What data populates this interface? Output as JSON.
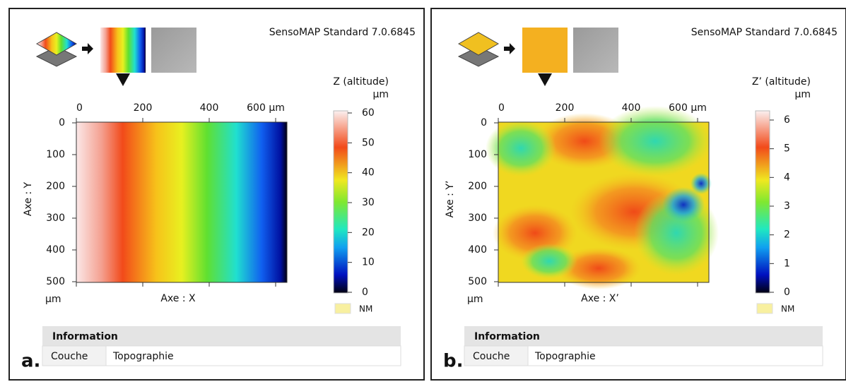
{
  "panels": [
    {
      "label": "a.",
      "software": "SensoMAP Standard 7.0.6845",
      "colorbar": {
        "title": "Z (altitude)",
        "unit": "µm",
        "ticks": [
          "0",
          "10",
          "20",
          "30",
          "40",
          "50",
          "60"
        ],
        "nm": "NM"
      },
      "x_axis": {
        "ticks": [
          "0",
          "200",
          "400",
          "600 µm"
        ],
        "label": "Axe : X"
      },
      "y_axis": {
        "ticks": [
          "0",
          "100",
          "200",
          "300",
          "400",
          "500"
        ],
        "unit": "µm",
        "label": "Axe : Y"
      },
      "info": {
        "title": "Information",
        "key": "Couche",
        "value": "Topographie"
      }
    },
    {
      "label": "b.",
      "software": "SensoMAP Standard 7.0.6845",
      "colorbar": {
        "title": "Z’ (altitude)",
        "unit": "µm",
        "ticks": [
          "0",
          "1",
          "2",
          "3",
          "4",
          "5",
          "6"
        ],
        "nm": "NM"
      },
      "x_axis": {
        "ticks": [
          "0",
          "200",
          "400",
          "600 µm"
        ],
        "label": "Axe : X’"
      },
      "y_axis": {
        "ticks": [
          "0",
          "100",
          "200",
          "300",
          "400",
          "500"
        ],
        "unit": "µm",
        "label": "Axe : Y’"
      },
      "info": {
        "title": "Information",
        "key": "Couche",
        "value": "Topographie"
      }
    }
  ]
}
